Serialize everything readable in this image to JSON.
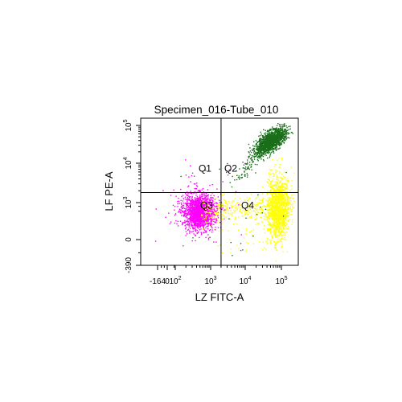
{
  "chart_data": {
    "type": "scatter",
    "title": "Specimen_016-Tube_010",
    "xlabel": "LZ FITC-A",
    "ylabel": "LF PE-A",
    "x_scale": "biexponential",
    "y_scale": "biexponential",
    "xlim": [
      -164,
      200000
    ],
    "ylim": [
      -390,
      200000
    ],
    "x_ticks": [
      {
        "value": -164,
        "base": "-164",
        "exp": ""
      },
      {
        "value": 0,
        "base": "0",
        "exp": ""
      },
      {
        "value": 100,
        "base": "10",
        "exp": "2"
      },
      {
        "value": 1000,
        "base": "10",
        "exp": "3"
      },
      {
        "value": 10000,
        "base": "10",
        "exp": "4"
      },
      {
        "value": 100000,
        "base": "10",
        "exp": "5"
      }
    ],
    "y_ticks": [
      {
        "value": -390,
        "base": "-390",
        "exp": ""
      },
      {
        "value": 0,
        "base": "0",
        "exp": ""
      },
      {
        "value": 1000,
        "base": "10",
        "exp": "3"
      },
      {
        "value": 10000,
        "base": "10",
        "exp": "4"
      },
      {
        "value": 100000,
        "base": "10",
        "exp": "5"
      }
    ],
    "quadrant_gate": {
      "x": 2000,
      "y": 1800
    },
    "quadrants": [
      {
        "label": "Q1",
        "position": "top-left"
      },
      {
        "label": "Q2",
        "position": "top-right"
      },
      {
        "label": "Q3",
        "position": "bottom-left"
      },
      {
        "label": "Q4",
        "position": "bottom-right"
      }
    ],
    "populations": [
      {
        "color": "#ff00ff",
        "center": [
          450,
          200
        ],
        "spread": [
          0.2,
          0.22
        ],
        "quadrant": "Q3"
      },
      {
        "color": "#1a6e1a",
        "center": [
          50000,
          40000
        ],
        "spread": [
          0.16,
          0.16
        ],
        "quadrant": "Q2"
      },
      {
        "color": "#ffff00",
        "center": [
          80000,
          400
        ],
        "spread": [
          0.12,
          0.55
        ],
        "quadrant": "Q4"
      }
    ],
    "grid": false,
    "legend": "none"
  }
}
